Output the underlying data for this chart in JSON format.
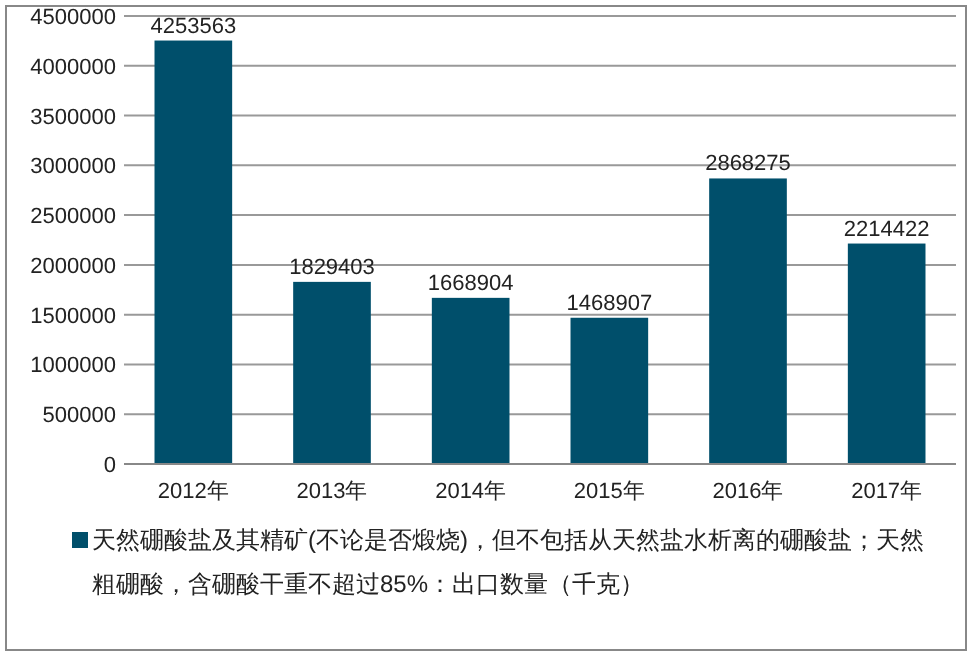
{
  "chart_data": {
    "type": "bar",
    "categories": [
      "2012年",
      "2013年",
      "2014年",
      "2015年",
      "2016年",
      "2017年"
    ],
    "series": [
      {
        "name": "天然硼酸盐及其精矿(不论是否煅烧)，但不包括从天然盐水析离的硼酸盐；天然粗硼酸，含硼酸干重不超过85%：出口数量（千克）",
        "color": "#004f6b",
        "values": [
          4253563,
          1829403,
          1668904,
          1468907,
          2868275,
          2214422
        ]
      }
    ],
    "ylim": [
      0,
      4500000
    ],
    "yticks": [
      0,
      500000,
      1000000,
      1500000,
      2000000,
      2500000,
      3000000,
      3500000,
      4000000,
      4500000
    ],
    "grid": "y",
    "data_labels": true,
    "legend": "bottom"
  }
}
